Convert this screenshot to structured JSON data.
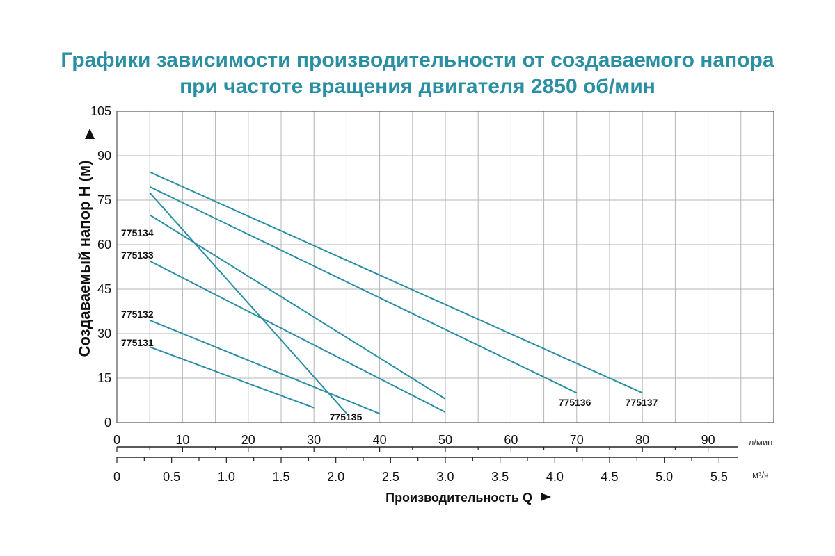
{
  "title": {
    "line1": "Графики зависимости производительности от создаваемого напора",
    "line2": "при частоте вращения двигателя 2850 об/мин"
  },
  "chart_data": {
    "type": "line",
    "ylabel": "Создаваемый напор Н (м)",
    "xlabel": "Производительность Q",
    "ylim": [
      0,
      105
    ],
    "yticks": [
      "0",
      "15",
      "30",
      "45",
      "60",
      "75",
      "90",
      "105"
    ],
    "x_primary": {
      "unit": "л/мин",
      "range": [
        0,
        100
      ],
      "ticks": [
        "0",
        "10",
        "20",
        "30",
        "40",
        "50",
        "60",
        "70",
        "80",
        "90"
      ]
    },
    "x_secondary": {
      "unit": "м³/ч",
      "ticks": [
        "0",
        "0.5",
        "1.0",
        "1.5",
        "2.0",
        "2.5",
        "3.0",
        "3.5",
        "4.0",
        "4.5",
        "5.0",
        "5.5"
      ]
    },
    "grid": true,
    "colors": {
      "line": "#2a8fa6",
      "grid": "#b5b5b5",
      "title": "#2b8fa3"
    },
    "series": [
      {
        "name": "775131",
        "points": [
          [
            5,
            25.5
          ],
          [
            30,
            5
          ]
        ]
      },
      {
        "name": "775132",
        "points": [
          [
            5,
            34.5
          ],
          [
            40,
            3
          ]
        ]
      },
      {
        "name": "775133",
        "points": [
          [
            5,
            54.5
          ],
          [
            50,
            3.5
          ]
        ]
      },
      {
        "name": "775134",
        "points": [
          [
            5,
            70
          ],
          [
            50,
            8
          ]
        ]
      },
      {
        "name": "775135",
        "points": [
          [
            5,
            77.5
          ],
          [
            35,
            3
          ]
        ]
      },
      {
        "name": "775136",
        "points": [
          [
            5,
            79.5
          ],
          [
            70,
            10
          ]
        ]
      },
      {
        "name": "775137",
        "points": [
          [
            5,
            84.5
          ],
          [
            80,
            10
          ]
        ]
      }
    ]
  }
}
